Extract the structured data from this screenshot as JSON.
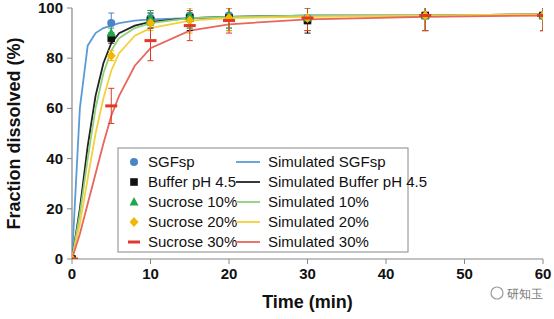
{
  "chart_data": {
    "type": "line",
    "x_label": "Time (min)",
    "y_label": "Fraction dissolved (%)",
    "xlim": [
      0,
      60
    ],
    "xticks": [
      0,
      10,
      20,
      30,
      40,
      50,
      60
    ],
    "ylim": [
      0,
      100
    ],
    "yticks": [
      0,
      20,
      40,
      60,
      80,
      100
    ],
    "grid": false,
    "legend": "bottom-left",
    "annotations": [
      "研知玉"
    ],
    "series": [
      {
        "name": "SGFsp",
        "type": "scatter",
        "marker": "circle",
        "color": "#4a86c5",
        "x": [
          0,
          5,
          10,
          15,
          20,
          30,
          45,
          60
        ],
        "values": [
          0,
          94,
          96,
          97,
          97,
          96,
          97,
          97
        ],
        "errors": [
          0,
          4,
          3,
          5,
          5,
          5,
          6,
          6
        ]
      },
      {
        "name": "Buffer pH 4.5",
        "type": "scatter",
        "marker": "square",
        "color": "#111111",
        "x": [
          0,
          5,
          10,
          15,
          20,
          30,
          45,
          60
        ],
        "values": [
          0,
          88,
          95,
          96,
          96,
          95,
          97,
          97
        ],
        "errors": [
          0,
          2,
          3,
          5,
          5,
          5,
          6,
          6
        ]
      },
      {
        "name": "Sucrose 10%",
        "type": "scatter",
        "marker": "triangle",
        "color": "#1fa84b",
        "x": [
          0,
          5,
          10,
          15,
          20,
          30,
          45,
          60
        ],
        "values": [
          0,
          90,
          96,
          97,
          97,
          96,
          97,
          97
        ],
        "errors": [
          0,
          2,
          3,
          5,
          5,
          5,
          6,
          6
        ]
      },
      {
        "name": "Sucrose 20%",
        "type": "scatter",
        "marker": "diamond",
        "color": "#f2b705",
        "x": [
          0,
          5,
          10,
          15,
          20,
          30,
          45,
          60
        ],
        "values": [
          0,
          81,
          94,
          95,
          96,
          96,
          97,
          97
        ],
        "errors": [
          0,
          2,
          3,
          5,
          5,
          5,
          6,
          6
        ]
      },
      {
        "name": "Sucrose 30%",
        "type": "scatter",
        "marker": "dash",
        "color": "#e0392a",
        "x": [
          0,
          5,
          10,
          15,
          20,
          30,
          45,
          60
        ],
        "values": [
          0,
          61,
          87,
          93,
          95,
          96,
          97,
          97
        ],
        "errors": [
          0,
          7,
          8,
          6,
          5,
          5,
          6,
          6
        ]
      },
      {
        "name": "Simulated SGFsp",
        "type": "line",
        "line_style": "solid",
        "color": "#5b9bd5",
        "x": [
          0,
          1,
          2,
          3,
          4,
          5,
          6,
          8,
          10,
          15,
          20,
          30,
          45,
          60
        ],
        "values": [
          0,
          60,
          85,
          90,
          92,
          93,
          94,
          95,
          95.5,
          96,
          96.5,
          97,
          97,
          97.5
        ]
      },
      {
        "name": "Simulated Buffer pH 4.5",
        "type": "line",
        "line_style": "solid",
        "color": "#222222",
        "x": [
          0,
          1,
          2,
          3,
          4,
          5,
          6,
          8,
          10,
          15,
          20,
          30,
          45,
          60
        ],
        "values": [
          0,
          20,
          45,
          65,
          78,
          86,
          90,
          93,
          94.5,
          96,
          96.5,
          97,
          97,
          97.5
        ]
      },
      {
        "name": "Simulated 10%",
        "type": "line",
        "line_style": "solid",
        "color": "#8fd17a",
        "x": [
          0,
          1,
          2,
          3,
          4,
          5,
          6,
          8,
          10,
          15,
          20,
          30,
          45,
          60
        ],
        "values": [
          0,
          18,
          40,
          60,
          74,
          83,
          88,
          92,
          94,
          96,
          96.5,
          97,
          97,
          97.5
        ]
      },
      {
        "name": "Simulated 20%",
        "type": "line",
        "line_style": "solid",
        "color": "#f5d03a",
        "x": [
          0,
          1,
          2,
          3,
          4,
          5,
          6,
          8,
          10,
          15,
          20,
          30,
          45,
          60
        ],
        "values": [
          0,
          14,
          32,
          50,
          64,
          75,
          82,
          89,
          92,
          95,
          96,
          96.5,
          97,
          97.5
        ]
      },
      {
        "name": "Simulated 30%",
        "type": "line",
        "line_style": "solid",
        "color": "#e8665a",
        "x": [
          0,
          1,
          2,
          3,
          4,
          5,
          6,
          8,
          10,
          15,
          20,
          30,
          45,
          60
        ],
        "values": [
          0,
          10,
          22,
          34,
          46,
          57,
          65,
          77,
          84,
          91,
          93.5,
          95.5,
          96.5,
          97
        ]
      }
    ]
  }
}
